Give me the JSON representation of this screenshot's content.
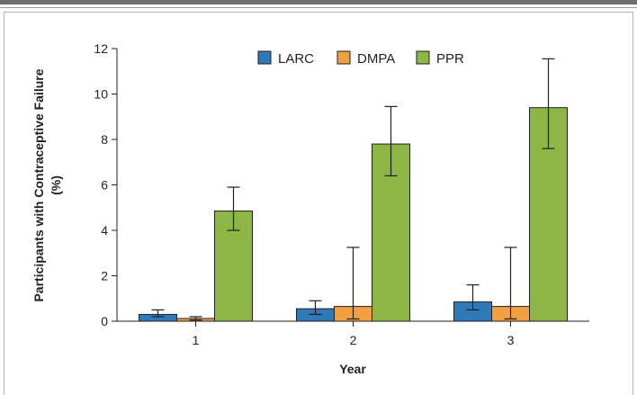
{
  "chart_data": {
    "type": "bar",
    "categories": [
      "1",
      "2",
      "3"
    ],
    "series": [
      {
        "name": "LARC",
        "color": "#2e7ab8",
        "values": [
          0.3,
          0.55,
          0.85
        ],
        "err_low": [
          0.2,
          0.3,
          0.5
        ],
        "err_high": [
          0.5,
          0.9,
          1.6
        ]
      },
      {
        "name": "DMPA",
        "color": "#f0a040",
        "values": [
          0.12,
          0.65,
          0.65
        ],
        "err_low": [
          0.05,
          0.1,
          0.1
        ],
        "err_high": [
          0.2,
          3.25,
          3.25
        ]
      },
      {
        "name": "PPR",
        "color": "#8db644",
        "values": [
          4.85,
          7.8,
          9.4
        ],
        "err_low": [
          4.0,
          6.4,
          7.6
        ],
        "err_high": [
          5.9,
          9.45,
          11.55
        ]
      }
    ],
    "xlabel": "Year",
    "ylabel_line1": "Participants with Contraceptive Failure",
    "ylabel_line2": "(%)",
    "ylim": [
      0,
      12
    ],
    "yticks": [
      0,
      2,
      4,
      6,
      8,
      10,
      12
    ],
    "grid": false,
    "legend_position": "top-center"
  }
}
